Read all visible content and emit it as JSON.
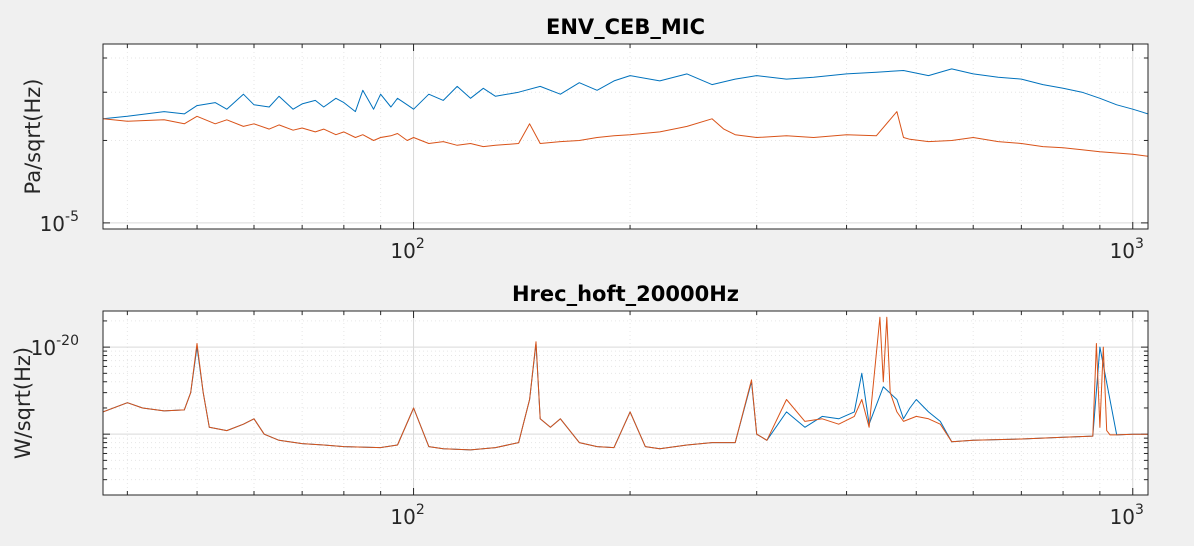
{
  "chart_data": [
    {
      "type": "line",
      "title": "ENV_CEB_MIC",
      "ylabel": "Pa/sqrt(Hz)",
      "xscale": "log",
      "yscale": "log",
      "xlim": [
        37,
        1050
      ],
      "ylim": [
        9.5e-06,
        4.5e-05
      ],
      "xticks": [
        {
          "value": 100,
          "base": "10",
          "exp": "2"
        },
        {
          "value": 1000,
          "base": "10",
          "exp": "3"
        }
      ],
      "yticks": [
        {
          "value": 1e-05,
          "base": "10",
          "exp": "-5"
        }
      ],
      "grid": true,
      "colors": [
        "#0072BD",
        "#D95319"
      ],
      "series": [
        {
          "x": [
            37,
            40,
            45,
            48,
            50,
            53,
            55,
            58,
            60,
            63,
            65,
            68,
            70,
            73,
            75,
            78,
            80,
            83,
            85,
            88,
            90,
            93,
            95,
            98,
            100,
            105,
            110,
            115,
            120,
            125,
            130,
            140,
            150,
            160,
            170,
            180,
            190,
            200,
            220,
            240,
            260,
            280,
            300,
            330,
            360,
            400,
            440,
            480,
            520,
            560,
            600,
            650,
            700,
            750,
            800,
            850,
            900,
            950,
            1000,
            1050
          ],
          "values": [
            2.4e-05,
            2.45e-05,
            2.55e-05,
            2.5e-05,
            2.68e-05,
            2.75e-05,
            2.6e-05,
            2.95e-05,
            2.7e-05,
            2.65e-05,
            2.9e-05,
            2.6e-05,
            2.72e-05,
            2.8e-05,
            2.65e-05,
            2.85e-05,
            2.75e-05,
            2.55e-05,
            3.05e-05,
            2.6e-05,
            2.95e-05,
            2.65e-05,
            2.85e-05,
            2.7e-05,
            2.6e-05,
            2.95e-05,
            2.8e-05,
            3.15e-05,
            2.85e-05,
            3.1e-05,
            2.9e-05,
            3e-05,
            3.15e-05,
            2.95e-05,
            3.25e-05,
            3.05e-05,
            3.3e-05,
            3.45e-05,
            3.3e-05,
            3.5e-05,
            3.2e-05,
            3.35e-05,
            3.45e-05,
            3.35e-05,
            3.4e-05,
            3.5e-05,
            3.55e-05,
            3.6e-05,
            3.45e-05,
            3.65e-05,
            3.5e-05,
            3.4e-05,
            3.35e-05,
            3.2e-05,
            3.1e-05,
            3e-05,
            2.85e-05,
            2.7e-05,
            2.6e-05,
            2.5e-05
          ]
        },
        {
          "x": [
            37,
            40,
            45,
            48,
            50,
            53,
            55,
            58,
            60,
            63,
            65,
            68,
            70,
            73,
            75,
            78,
            80,
            83,
            85,
            88,
            90,
            93,
            95,
            98,
            100,
            105,
            110,
            115,
            120,
            125,
            130,
            140,
            145,
            150,
            160,
            170,
            180,
            190,
            200,
            220,
            240,
            260,
            270,
            280,
            300,
            330,
            360,
            400,
            440,
            470,
            480,
            490,
            520,
            560,
            600,
            650,
            700,
            750,
            800,
            850,
            900,
            950,
            1000,
            1050
          ],
          "values": [
            2.4e-05,
            2.35e-05,
            2.38e-05,
            2.3e-05,
            2.45e-05,
            2.3e-05,
            2.38e-05,
            2.25e-05,
            2.3e-05,
            2.2e-05,
            2.28e-05,
            2.18e-05,
            2.22e-05,
            2.15e-05,
            2.2e-05,
            2.1e-05,
            2.15e-05,
            2.05e-05,
            2.1e-05,
            2e-05,
            2.05e-05,
            2.08e-05,
            2.12e-05,
            2e-05,
            2.05e-05,
            1.95e-05,
            1.98e-05,
            1.92e-05,
            1.95e-05,
            1.9e-05,
            1.92e-05,
            1.95e-05,
            2.3e-05,
            1.95e-05,
            1.98e-05,
            2e-05,
            2.05e-05,
            2.08e-05,
            2.1e-05,
            2.15e-05,
            2.25e-05,
            2.4e-05,
            2.2e-05,
            2.1e-05,
            2.05e-05,
            2.08e-05,
            2.05e-05,
            2.1e-05,
            2.08e-05,
            2.55e-05,
            2.05e-05,
            2.02e-05,
            1.98e-05,
            2e-05,
            2.05e-05,
            1.98e-05,
            1.95e-05,
            1.9e-05,
            1.88e-05,
            1.85e-05,
            1.82e-05,
            1.8e-05,
            1.78e-05,
            1.75e-05
          ]
        }
      ]
    },
    {
      "type": "line",
      "title": "Hrec_hoft_20000Hz",
      "ylabel": "W/sqrt(Hz)",
      "xscale": "log",
      "yscale": "log",
      "xlim": [
        37,
        1050
      ],
      "ylim": [
        2e-22,
        2.6e-20
      ],
      "xticks": [
        {
          "value": 100,
          "base": "10",
          "exp": "2"
        },
        {
          "value": 1000,
          "base": "10",
          "exp": "3"
        }
      ],
      "yticks": [
        {
          "value": 1e-20,
          "base": "10",
          "exp": "-20"
        }
      ],
      "grid": true,
      "colors": [
        "#0072BD",
        "#D95319"
      ],
      "series": [
        {
          "x": [
            37,
            40,
            42,
            45,
            48,
            49,
            50,
            51,
            52,
            55,
            58,
            60,
            62,
            65,
            70,
            75,
            80,
            90,
            95,
            100,
            105,
            110,
            120,
            130,
            140,
            145,
            148,
            150,
            155,
            160,
            170,
            180,
            190,
            200,
            210,
            220,
            240,
            260,
            280,
            295,
            300,
            310,
            330,
            350,
            370,
            390,
            410,
            420,
            430,
            450,
            470,
            480,
            490,
            500,
            520,
            540,
            560,
            600,
            700,
            800,
            880,
            900,
            950,
            1000,
            1050
          ],
          "values": [
            1.8e-21,
            2.3e-21,
            2e-21,
            1.85e-21,
            1.9e-21,
            3e-21,
            1e-20,
            3e-21,
            1.2e-21,
            1.1e-21,
            1.3e-21,
            1.5e-21,
            1e-21,
            8.5e-22,
            7.8e-22,
            7.5e-22,
            7.2e-22,
            7e-22,
            7.5e-22,
            2e-21,
            7.2e-22,
            6.8e-22,
            6.6e-22,
            7e-22,
            8e-22,
            2.5e-21,
            1.1e-20,
            1.5e-21,
            1.2e-21,
            1.5e-21,
            8e-22,
            7.2e-22,
            7e-22,
            1.8e-21,
            7.2e-22,
            6.8e-22,
            7.5e-22,
            8e-22,
            8e-22,
            4e-21,
            1e-21,
            8.5e-22,
            1.8e-21,
            1.2e-21,
            1.6e-21,
            1.5e-21,
            1.8e-21,
            5e-21,
            1.3e-21,
            3.5e-21,
            2.5e-21,
            1.5e-21,
            2e-21,
            2.5e-21,
            1.8e-21,
            1.4e-21,
            8.2e-22,
            8.5e-22,
            8.8e-22,
            9.2e-22,
            9.5e-22,
            1e-20,
            9.8e-22,
            1e-21,
            1e-21
          ]
        },
        {
          "x": [
            37,
            40,
            42,
            45,
            48,
            49,
            50,
            51,
            52,
            55,
            58,
            60,
            62,
            65,
            70,
            75,
            80,
            90,
            95,
            100,
            105,
            110,
            120,
            130,
            140,
            145,
            148,
            150,
            155,
            160,
            170,
            180,
            190,
            200,
            210,
            220,
            240,
            260,
            280,
            295,
            300,
            310,
            330,
            350,
            370,
            390,
            410,
            420,
            430,
            445,
            450,
            455,
            460,
            470,
            480,
            500,
            520,
            540,
            560,
            600,
            700,
            800,
            880,
            890,
            900,
            910,
            920,
            930,
            950,
            1000,
            1050
          ],
          "values": [
            1.8e-21,
            2.3e-21,
            2e-21,
            1.85e-21,
            1.9e-21,
            3e-21,
            1.1e-20,
            3e-21,
            1.2e-21,
            1.1e-21,
            1.3e-21,
            1.5e-21,
            1e-21,
            8.5e-22,
            7.8e-22,
            7.5e-22,
            7.2e-22,
            7e-22,
            7.5e-22,
            2e-21,
            7.2e-22,
            6.8e-22,
            6.6e-22,
            7e-22,
            8e-22,
            2.5e-21,
            1.15e-20,
            1.5e-21,
            1.2e-21,
            1.5e-21,
            8e-22,
            7.2e-22,
            7e-22,
            1.8e-21,
            7.2e-22,
            6.8e-22,
            7.5e-22,
            8e-22,
            8e-22,
            4.2e-21,
            1e-21,
            8.5e-22,
            2.5e-21,
            1.4e-21,
            1.5e-21,
            1.3e-21,
            1.6e-21,
            2.5e-21,
            1.2e-21,
            2.2e-20,
            4e-21,
            2.2e-20,
            3e-21,
            1.8e-21,
            1.4e-21,
            1.6e-21,
            1.5e-21,
            1.3e-21,
            8.2e-22,
            8.5e-22,
            8.8e-22,
            9.2e-22,
            9.5e-22,
            1.1e-20,
            1.2e-21,
            1e-20,
            1.1e-21,
            9.8e-22,
            9.8e-22,
            1e-21,
            1e-21
          ]
        }
      ]
    }
  ]
}
